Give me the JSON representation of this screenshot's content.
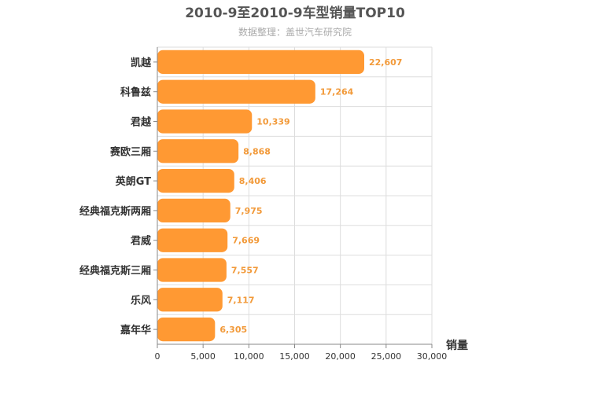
{
  "chart_data": {
    "type": "bar",
    "orientation": "horizontal",
    "title": "2010-9至2010-9车型销量TOP10",
    "subtitle": "数据整理：盖世汽车研究院",
    "xlabel": "销量",
    "ylabel": "",
    "xlim": [
      0,
      30000
    ],
    "ticks": [
      0,
      5000,
      10000,
      15000,
      20000,
      25000,
      30000
    ],
    "tick_labels": [
      "0",
      "5,000",
      "10,000",
      "15,000",
      "20,000",
      "25,000",
      "30,000"
    ],
    "grid": true,
    "bar_color": "#ff9933",
    "categories": [
      "凯越",
      "科鲁兹",
      "君越",
      "赛欧三厢",
      "英朗GT",
      "经典福克斯两厢",
      "君威",
      "经典福克斯三厢",
      "乐风",
      "嘉年华"
    ],
    "values": [
      22607,
      17264,
      10339,
      8868,
      8406,
      7975,
      7669,
      7557,
      7117,
      6305
    ],
    "value_labels": [
      "22,607",
      "17,264",
      "10,339",
      "8,868",
      "8,406",
      "7,975",
      "7,669",
      "7,557",
      "7,117",
      "6,305"
    ]
  }
}
